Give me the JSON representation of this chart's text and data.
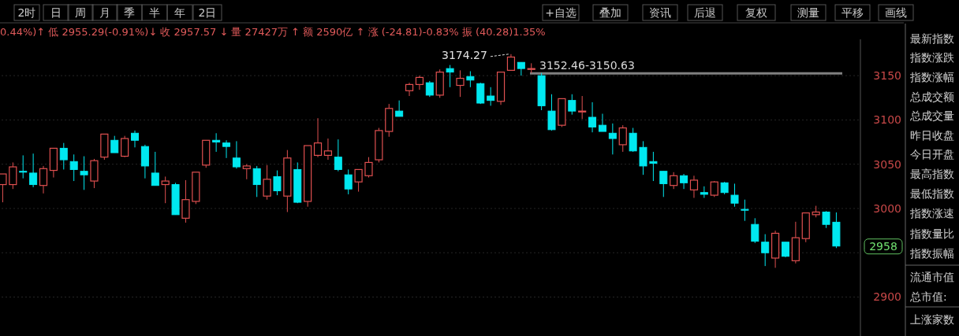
{
  "chart_data": [
    {
      "type": "other",
      "annotations": [
        "2时",
        "日",
        "周",
        "月",
        "季",
        "半",
        "年",
        "2日",
        "+自选",
        "叠加",
        "资讯",
        "后退",
        "复权",
        "测量",
        "平移",
        "画线"
      ]
    },
    {
      "type": "candlestick",
      "subtitle": "0.44%)↑ 低 2955.29(-0.91%)↓ 收 2957.57 ↓ 量 27427万 ↑ 额 2590亿 ↑ 涨 (-24.81)-0.83% 振 (40.28)1.35%",
      "categories": [
        null,
        null,
        null,
        null,
        null,
        null,
        null,
        null,
        null,
        null,
        null,
        null,
        null,
        null,
        null,
        null,
        null,
        null,
        null,
        null,
        null,
        null,
        null,
        null,
        null,
        null,
        null,
        null,
        null,
        null,
        null,
        null,
        null,
        null,
        null,
        null,
        null,
        null,
        null,
        null,
        null,
        null,
        null,
        null,
        null,
        null,
        null,
        null,
        null,
        null,
        null,
        null,
        null,
        null,
        null,
        null,
        null,
        null,
        null,
        null,
        null,
        null,
        null,
        null,
        null,
        null,
        null,
        null,
        null,
        null,
        null,
        null,
        null,
        null,
        null,
        null,
        null,
        null,
        null,
        null,
        null,
        null,
        null
      ],
      "ohlc": [
        [
          3027,
          3039,
          3007,
          3039
        ],
        [
          3027,
          3052,
          3022,
          3047
        ],
        [
          3042,
          3060,
          3034,
          3041
        ],
        [
          3040,
          3062,
          3024,
          3027
        ],
        [
          3026,
          3048,
          3017,
          3045
        ],
        [
          3043,
          3068,
          3035,
          3068
        ],
        [
          3068,
          3074,
          3044,
          3055
        ],
        [
          3053,
          3061,
          3031,
          3044
        ],
        [
          3042,
          3059,
          3021,
          3038
        ],
        [
          3031,
          3056,
          3023,
          3054
        ],
        [
          3058,
          3084,
          3055,
          3084
        ],
        [
          3077,
          3082,
          3063,
          3063
        ],
        [
          3059,
          3082,
          3058,
          3079
        ],
        [
          3085,
          3088,
          3069,
          3077
        ],
        [
          3070,
          3072,
          3034,
          3048
        ],
        [
          3040,
          3064,
          3026,
          3026
        ],
        [
          3027,
          3036,
          3006,
          3031
        ],
        [
          3027,
          3029,
          2993,
          2993
        ],
        [
          2989,
          3032,
          2984,
          3010
        ],
        [
          3008,
          3041,
          3005,
          3041
        ],
        [
          3049,
          3077,
          3046,
          3077
        ],
        [
          3077,
          3085,
          3064,
          3075
        ],
        [
          3074,
          3077,
          3057,
          3070
        ],
        [
          3057,
          3076,
          3045,
          3047
        ],
        [
          3045,
          3050,
          3033,
          3048
        ],
        [
          3045,
          3048,
          3013,
          3027
        ],
        [
          3014,
          3049,
          3010,
          3033
        ],
        [
          3036,
          3043,
          3015,
          3020
        ],
        [
          3014,
          3066,
          2996,
          3057
        ],
        [
          3044,
          3052,
          3006,
          3007
        ],
        [
          3008,
          3071,
          3002,
          3071
        ],
        [
          3060,
          3102,
          3058,
          3074
        ],
        [
          3060,
          3079,
          3055,
          3065
        ],
        [
          3058,
          3078,
          3042,
          3044
        ],
        [
          3038,
          3044,
          3016,
          3022
        ],
        [
          3030,
          3044,
          3019,
          3044
        ],
        [
          3037,
          3058,
          3035,
          3052
        ],
        [
          3055,
          3091,
          3052,
          3088
        ],
        [
          3087,
          3118,
          3081,
          3113
        ],
        [
          3110,
          3122,
          3104,
          3104
        ],
        [
          3133,
          3142,
          3127,
          3140
        ],
        [
          3140,
          3150,
          3134,
          3148
        ],
        [
          3142,
          3144,
          3126,
          3128
        ],
        [
          3128,
          3157,
          3125,
          3154
        ],
        [
          3158,
          3162,
          3137,
          3154
        ],
        [
          3139,
          3156,
          3126,
          3147
        ],
        [
          3149,
          3155,
          3137,
          3145
        ],
        [
          3141,
          3142,
          3118,
          3119
        ],
        [
          3127,
          3137,
          3116,
          3122
        ],
        [
          3121,
          3154,
          3117,
          3154
        ],
        [
          3156,
          3174.27,
          3156,
          3171
        ],
        [
          3165,
          3165,
          3150,
          3158
        ],
        [
          3157,
          3164,
          3153,
          3158
        ],
        [
          3150,
          3153,
          3111,
          3116
        ],
        [
          3110,
          3129,
          3088,
          3089
        ],
        [
          3094,
          3124,
          3092,
          3124
        ],
        [
          3122,
          3129,
          3106,
          3110
        ],
        [
          3109,
          3127,
          3101,
          3110
        ],
        [
          3103,
          3120,
          3086,
          3092
        ],
        [
          3094,
          3107,
          3087,
          3087
        ],
        [
          3085,
          3096,
          3061,
          3079
        ],
        [
          3072,
          3094,
          3064,
          3091
        ],
        [
          3085,
          3091,
          3064,
          3065
        ],
        [
          3069,
          3076,
          3038,
          3048
        ],
        [
          3053,
          3064,
          3031,
          3051
        ],
        [
          3042,
          3042,
          3013,
          3028
        ],
        [
          3026,
          3041,
          3022,
          3037
        ],
        [
          3037,
          3039,
          3022,
          3029
        ],
        [
          3021,
          3037,
          3012,
          3032
        ],
        [
          3018,
          3025,
          3012,
          3016
        ],
        [
          3015,
          3031,
          3013,
          3030
        ],
        [
          3029,
          3030,
          3016,
          3018
        ],
        [
          3015,
          3028,
          3002,
          3006
        ],
        [
          2999,
          3010,
          2986,
          2998
        ],
        [
          2982,
          2989,
          2961,
          2963
        ],
        [
          2962,
          2971,
          2935,
          2950
        ],
        [
          2944,
          2975,
          2933,
          2972
        ],
        [
          2962,
          2962,
          2945,
          2946
        ],
        [
          2941,
          2985,
          2938,
          2967
        ],
        [
          2966,
          2995,
          2962,
          2995
        ],
        [
          2993,
          3003,
          2990,
          2996
        ],
        [
          2996,
          2997,
          2978,
          2982
        ],
        [
          2984.5,
          2995.57,
          2955.29,
          2957.57
        ]
      ],
      "colors": [
        "#e05050",
        "#e05050",
        "#00e8f0",
        "#00e8f0",
        "#e05050",
        "#e05050",
        "#00e8f0",
        "#00e8f0",
        "#00e8f0",
        "#e05050",
        "#e05050",
        "#00e8f0",
        "#e05050",
        "#00e8f0",
        "#00e8f0",
        "#00e8f0",
        "#e05050",
        "#00e8f0",
        "#e05050",
        "#e05050",
        "#e05050",
        "#00e8f0",
        "#00e8f0",
        "#00e8f0",
        "#e05050",
        "#00e8f0",
        "#e05050",
        "#00e8f0",
        "#e05050",
        "#00e8f0",
        "#e05050",
        "#e05050",
        "#e05050",
        "#00e8f0",
        "#00e8f0",
        "#e05050",
        "#e05050",
        "#e05050",
        "#e05050",
        "#00e8f0",
        "#e05050",
        "#e05050",
        "#00e8f0",
        "#e05050",
        "#00e8f0",
        "#e05050",
        "#00e8f0",
        "#00e8f0",
        "#00e8f0",
        "#e05050",
        "#e05050",
        "#00e8f0",
        "#e05050",
        "#00e8f0",
        "#00e8f0",
        "#e05050",
        "#00e8f0",
        "#e05050",
        "#00e8f0",
        "#00e8f0",
        "#00e8f0",
        "#e05050",
        "#00e8f0",
        "#00e8f0",
        "#00e8f0",
        "#00e8f0",
        "#e05050",
        "#00e8f0",
        "#e05050",
        "#00e8f0",
        "#e05050",
        "#00e8f0",
        "#00e8f0",
        "#00e8f0",
        "#00e8f0",
        "#00e8f0",
        "#e05050",
        "#00e8f0",
        "#e05050",
        "#e05050",
        "#e05050",
        "#00e8f0",
        "#00e8f0"
      ],
      "ylim": [
        2856,
        3191
      ],
      "yticks": [
        2900,
        {
          "value": 2950,
          "label": null
        },
        3000,
        3050,
        3100,
        3150
      ],
      "grid": "y",
      "ref_lines": [
        {
          "axis": "y",
          "value": 3152.46,
          "label": "3152.46-3150.63",
          "color": "#808080"
        }
      ],
      "annotations": [
        "3174.27",
        "2958"
      ]
    },
    {
      "type": "other",
      "annotations": [
        "最新指数",
        "指数涨跌",
        "指数涨幅",
        "总成交额",
        "总成交量",
        "昨日收盘",
        "今日开盘",
        "最高指数",
        "最低指数",
        "指数涨速",
        "指数量比",
        "指数振幅",
        "流通市值",
        "总市值:",
        "上涨家数"
      ]
    }
  ]
}
